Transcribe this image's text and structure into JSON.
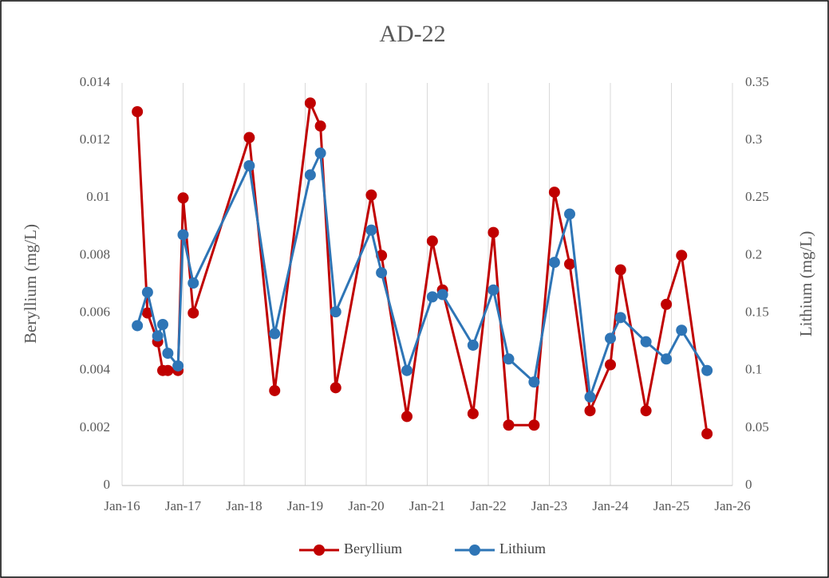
{
  "chart_data": {
    "type": "line",
    "title": "AD-22",
    "ylabel": "Beryllium (mg/L)",
    "y2label": "Lithium (mg/L)",
    "x": [
      "2016-04",
      "2016-06",
      "2016-08",
      "2016-09",
      "2016-10",
      "2016-12",
      "2017-01",
      "2017-03",
      "2018-02",
      "2018-07",
      "2019-02",
      "2019-04",
      "2019-07",
      "2020-02",
      "2020-04",
      "2020-09",
      "2021-02",
      "2021-04",
      "2021-10",
      "2022-02",
      "2022-05",
      "2022-10",
      "2023-02",
      "2023-05",
      "2023-09",
      "2024-01",
      "2024-03",
      "2024-08",
      "2024-12",
      "2025-03",
      "2025-08"
    ],
    "series": [
      {
        "name": "Beryllium",
        "color": "#c00000",
        "axis": "y",
        "values": [
          0.013,
          0.006,
          0.005,
          0.004,
          0.004,
          0.004,
          0.01,
          0.006,
          0.0121,
          0.0033,
          0.0133,
          0.0125,
          0.0034,
          0.0101,
          0.008,
          0.0024,
          0.0085,
          0.0068,
          0.0025,
          0.0088,
          0.0021,
          0.0021,
          0.0102,
          0.0077,
          0.0026,
          0.0042,
          0.0075,
          0.0026,
          0.0063,
          0.008,
          0.0018
        ]
      },
      {
        "name": "Lithium",
        "color": "#2e75b6",
        "axis": "y2",
        "values": [
          0.139,
          0.168,
          0.13,
          0.14,
          0.115,
          0.104,
          0.218,
          0.176,
          0.278,
          0.132,
          0.27,
          0.289,
          0.151,
          0.222,
          0.185,
          0.1,
          0.164,
          0.166,
          0.122,
          0.17,
          0.11,
          0.09,
          0.194,
          0.236,
          0.077,
          0.128,
          0.146,
          0.125,
          0.11,
          0.135,
          0.1
        ]
      }
    ],
    "xlim": [
      "2016-01",
      "2026-01"
    ],
    "xticks": [
      {
        "value": "2016-01",
        "label": "Jan-16"
      },
      {
        "value": "2017-01",
        "label": "Jan-17"
      },
      {
        "value": "2018-01",
        "label": "Jan-18"
      },
      {
        "value": "2019-01",
        "label": "Jan-19"
      },
      {
        "value": "2020-01",
        "label": "Jan-20"
      },
      {
        "value": "2021-01",
        "label": "Jan-21"
      },
      {
        "value": "2022-01",
        "label": "Jan-22"
      },
      {
        "value": "2023-01",
        "label": "Jan-23"
      },
      {
        "value": "2024-01",
        "label": "Jan-24"
      },
      {
        "value": "2025-01",
        "label": "Jan-25"
      },
      {
        "value": "2026-01",
        "label": "Jan-26"
      }
    ],
    "ylim": [
      0,
      0.014
    ],
    "yticks": [
      0,
      0.002,
      0.004,
      0.006,
      0.008,
      0.01,
      0.012,
      0.014
    ],
    "y2lim": [
      0,
      0.35
    ],
    "y2ticks": [
      0,
      0.05,
      0.1,
      0.15,
      0.2,
      0.25,
      0.3,
      0.35
    ],
    "xgrid": true,
    "legend": "bottom"
  }
}
